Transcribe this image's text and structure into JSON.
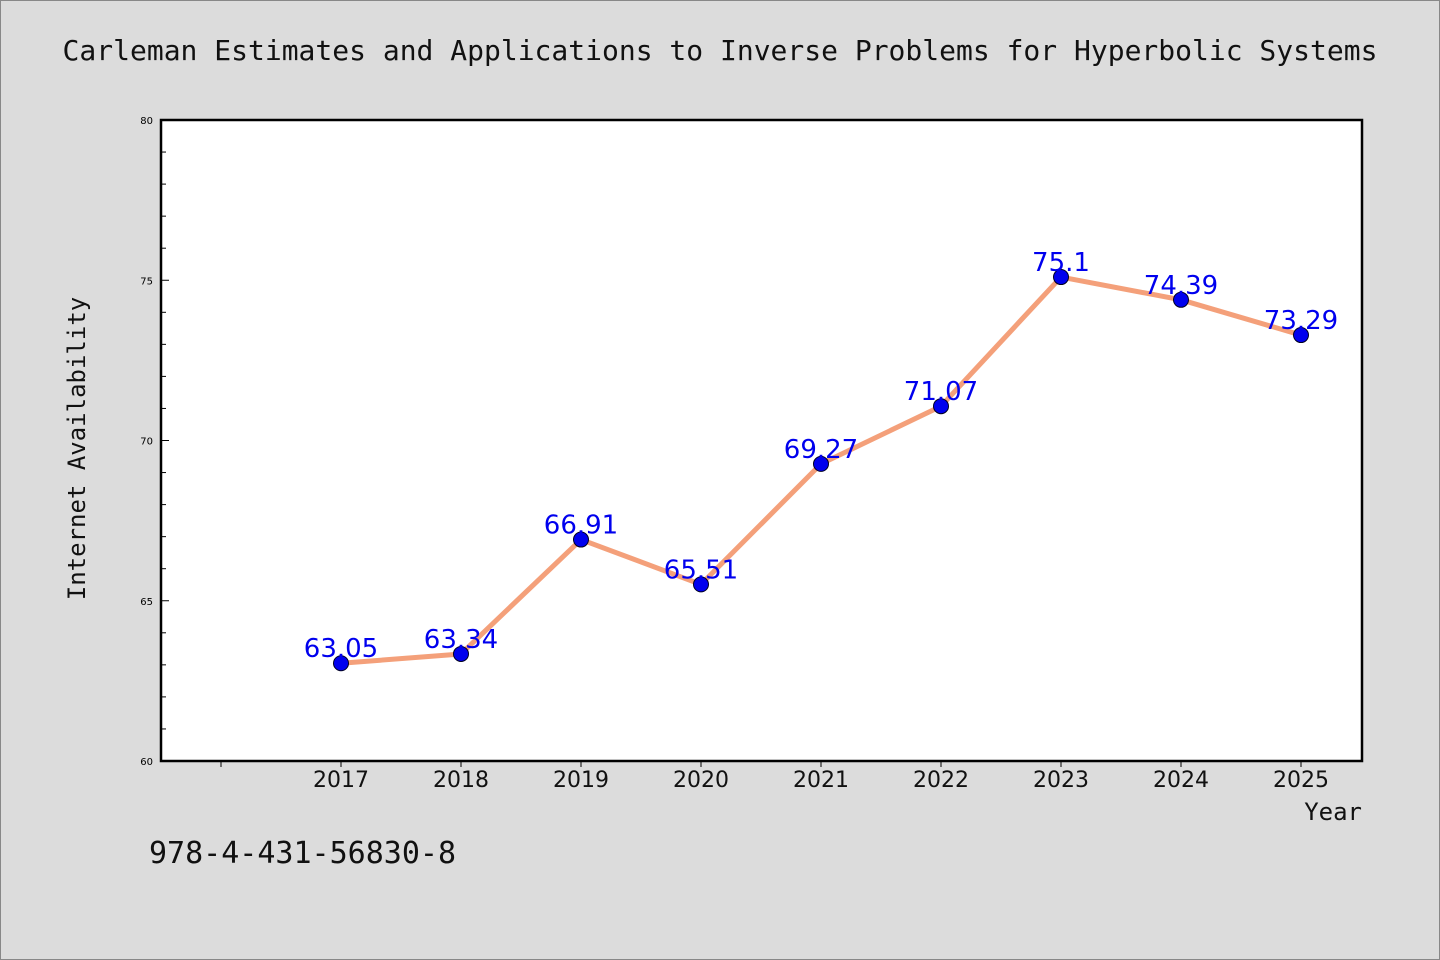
{
  "title": "Carleman Estimates and Applications to Inverse Problems for Hyperbolic Systems",
  "isbn": "978-4-431-56830-8",
  "colors": {
    "background": "#dcdcdc",
    "plot_area": "#ffffff",
    "line": "#f4a07a",
    "marker": "#0000ee",
    "data_label": "#0000ee"
  },
  "chart_data": {
    "type": "line",
    "title": "Carleman Estimates and Applications to Inverse Problems for Hyperbolic Systems",
    "xlabel": "Year",
    "ylabel": "Internet Availability",
    "categories": [
      "2017",
      "2018",
      "2019",
      "2020",
      "2021",
      "2022",
      "2023",
      "2024",
      "2025"
    ],
    "values": [
      63.05,
      63.34,
      66.91,
      65.51,
      69.27,
      71.07,
      75.1,
      74.39,
      73.29
    ],
    "data_labels": [
      "63.05",
      "63.34",
      "66.91",
      "65.51",
      "69.27",
      "71.07",
      "75.1",
      "74.39",
      "73.29"
    ],
    "ylim": [
      60,
      80
    ],
    "yticks": [
      "60",
      "65",
      "70",
      "75",
      "80"
    ],
    "grid": false,
    "legend": "none"
  }
}
